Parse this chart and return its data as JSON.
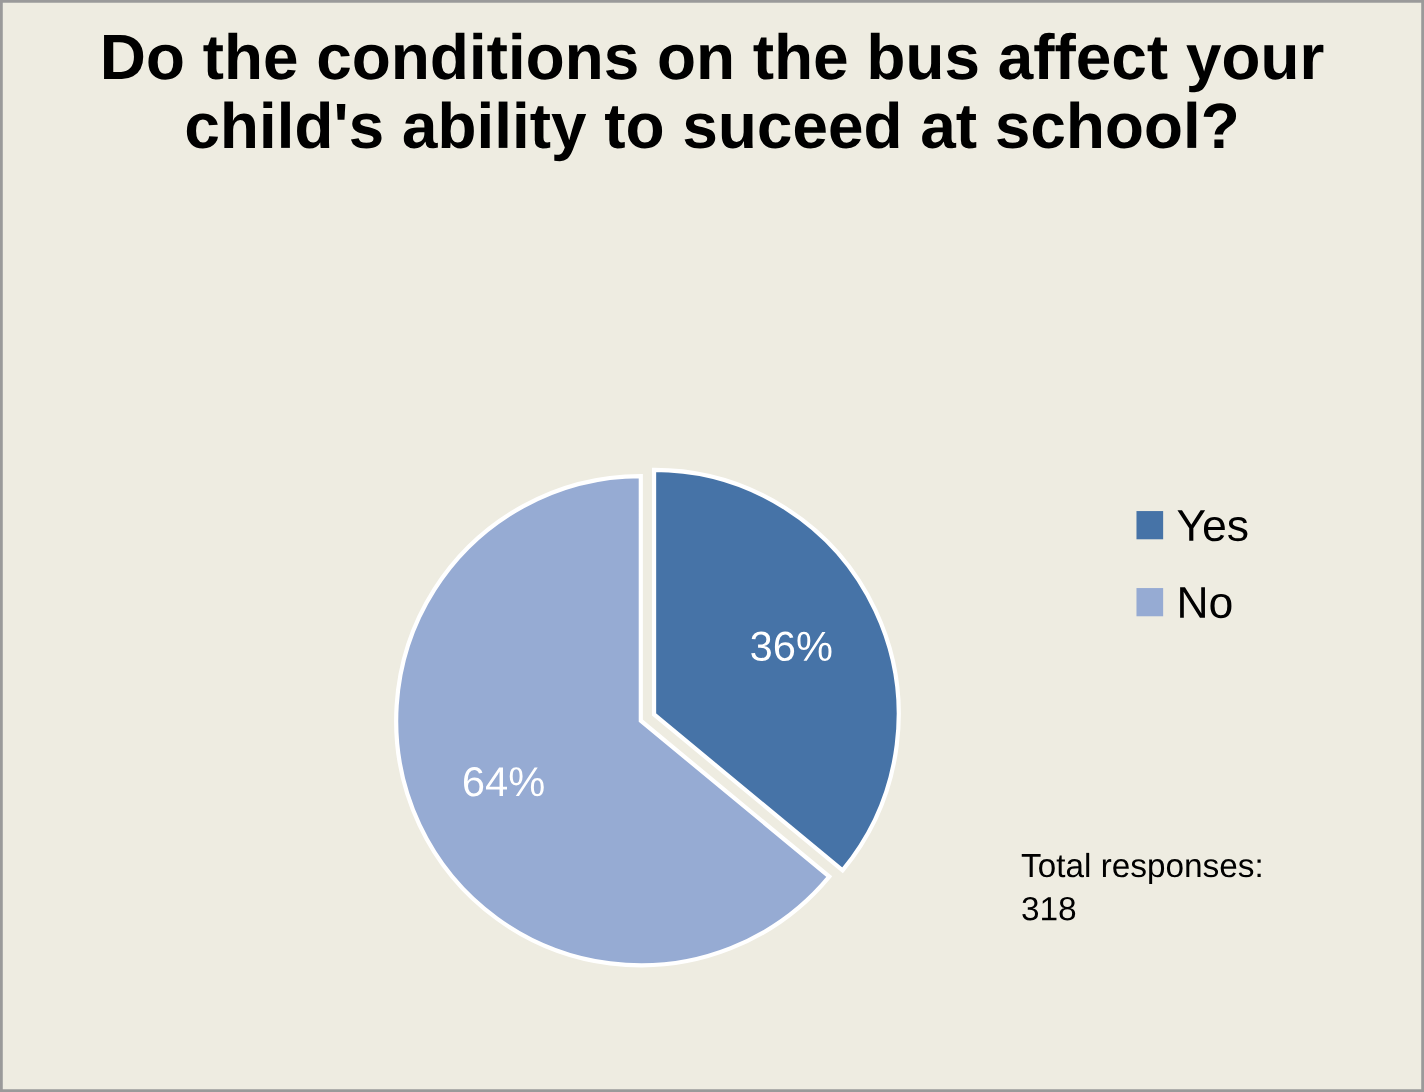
{
  "chart_data": {
    "type": "pie",
    "title": "Do the conditions on the bus affect your child's ability to suceed at school?",
    "categories": [
      "Yes",
      "No"
    ],
    "values": [
      36,
      64
    ],
    "colors": [
      "#4673a7",
      "#96abd3"
    ],
    "value_labels": [
      "36%",
      "64%"
    ],
    "legend": "right",
    "annotations": [
      "Total responses: 318"
    ]
  }
}
